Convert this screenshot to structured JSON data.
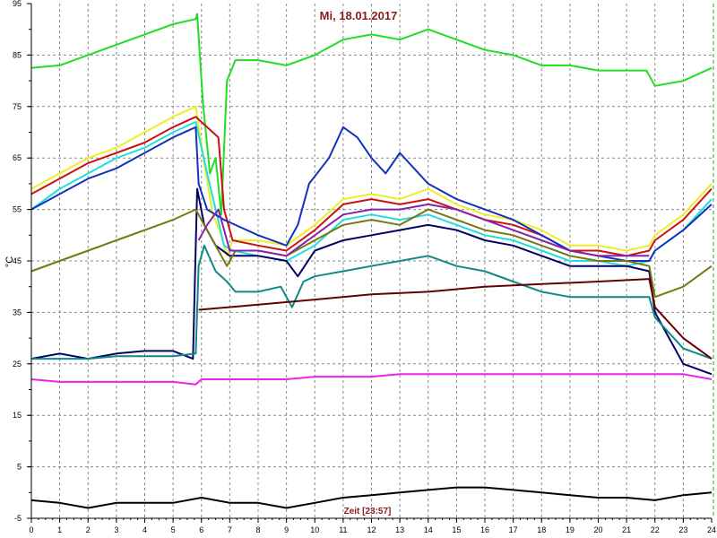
{
  "chart_data": {
    "type": "line",
    "title": "Mi, 18.01.2017",
    "xlabel": "Zeit [23:57]",
    "ylabel": "°C",
    "xlim": [
      0,
      24
    ],
    "ylim": [
      -5,
      95
    ],
    "x_ticks": [
      0,
      1,
      2,
      3,
      4,
      5,
      6,
      7,
      8,
      9,
      10,
      11,
      12,
      13,
      14,
      15,
      16,
      17,
      18,
      19,
      20,
      21,
      22,
      23,
      24
    ],
    "y_ticks": [
      -5,
      5,
      15,
      25,
      35,
      45,
      55,
      65,
      75,
      85,
      95
    ],
    "grid": true,
    "legend": "none",
    "series": [
      {
        "color": "#22dd22",
        "points": [
          [
            0,
            82.5
          ],
          [
            1,
            83
          ],
          [
            2,
            85
          ],
          [
            3,
            87
          ],
          [
            4,
            89
          ],
          [
            5,
            91
          ],
          [
            5.8,
            92
          ],
          [
            5.85,
            93
          ],
          [
            6.05,
            76
          ],
          [
            6.3,
            62
          ],
          [
            6.5,
            65
          ],
          [
            6.7,
            54
          ],
          [
            6.9,
            80
          ],
          [
            7.2,
            84
          ],
          [
            8,
            84
          ],
          [
            9,
            83
          ],
          [
            10,
            85
          ],
          [
            11,
            88
          ],
          [
            12,
            89
          ],
          [
            13,
            88
          ],
          [
            14,
            90
          ],
          [
            15,
            88
          ],
          [
            16,
            86
          ],
          [
            17,
            85
          ],
          [
            18,
            83
          ],
          [
            19,
            83
          ],
          [
            20,
            82
          ],
          [
            21,
            82
          ],
          [
            21.7,
            82
          ],
          [
            22,
            79
          ],
          [
            23,
            80
          ],
          [
            24,
            82.5
          ]
        ]
      },
      {
        "color": "#eeee22",
        "points": [
          [
            0,
            59
          ],
          [
            1,
            62
          ],
          [
            2,
            65
          ],
          [
            3,
            67
          ],
          [
            4,
            70
          ],
          [
            5,
            73
          ],
          [
            5.8,
            75
          ],
          [
            6.1,
            64
          ],
          [
            6.4,
            54
          ],
          [
            6.7,
            50
          ],
          [
            6.9,
            46
          ],
          [
            7.1,
            49
          ],
          [
            8,
            49
          ],
          [
            9,
            48
          ],
          [
            10,
            52
          ],
          [
            11,
            57
          ],
          [
            12,
            58
          ],
          [
            13,
            57
          ],
          [
            14,
            59
          ],
          [
            15,
            56
          ],
          [
            16,
            54
          ],
          [
            17,
            53
          ],
          [
            18,
            51
          ],
          [
            19,
            48
          ],
          [
            20,
            48
          ],
          [
            21,
            47
          ],
          [
            21.8,
            48
          ],
          [
            22,
            50
          ],
          [
            23,
            54
          ],
          [
            24,
            60
          ]
        ]
      },
      {
        "color": "#cc1111",
        "points": [
          [
            0,
            58
          ],
          [
            1,
            61
          ],
          [
            2,
            64
          ],
          [
            3,
            66
          ],
          [
            4,
            68
          ],
          [
            5,
            71
          ],
          [
            5.8,
            73
          ],
          [
            6.2,
            71
          ],
          [
            6.6,
            69
          ],
          [
            6.8,
            55
          ],
          [
            7.1,
            49
          ],
          [
            8,
            48
          ],
          [
            9,
            47
          ],
          [
            10,
            51
          ],
          [
            11,
            56
          ],
          [
            12,
            57
          ],
          [
            13,
            56
          ],
          [
            14,
            57
          ],
          [
            15,
            55
          ],
          [
            16,
            53
          ],
          [
            17,
            52
          ],
          [
            18,
            50
          ],
          [
            19,
            47
          ],
          [
            20,
            47
          ],
          [
            21,
            46
          ],
          [
            21.8,
            47
          ],
          [
            22,
            49
          ],
          [
            23,
            53
          ],
          [
            24,
            59
          ]
        ]
      },
      {
        "color": "#22dddd",
        "points": [
          [
            0,
            55
          ],
          [
            1,
            59
          ],
          [
            2,
            62
          ],
          [
            3,
            65
          ],
          [
            4,
            67
          ],
          [
            5,
            70
          ],
          [
            5.8,
            72
          ],
          [
            6.2,
            62
          ],
          [
            6.5,
            55
          ],
          [
            6.8,
            48
          ],
          [
            7.1,
            47
          ],
          [
            8,
            46
          ],
          [
            9,
            45
          ],
          [
            10,
            48
          ],
          [
            11,
            53
          ],
          [
            12,
            54
          ],
          [
            13,
            53
          ],
          [
            14,
            54
          ],
          [
            15,
            52
          ],
          [
            16,
            50
          ],
          [
            17,
            49
          ],
          [
            18,
            47
          ],
          [
            19,
            45
          ],
          [
            20,
            45
          ],
          [
            21,
            44
          ],
          [
            21.8,
            45
          ],
          [
            22,
            47
          ],
          [
            23,
            51
          ],
          [
            24,
            57
          ]
        ]
      },
      {
        "color": "#1133bb",
        "points": [
          [
            0,
            55
          ],
          [
            1,
            58
          ],
          [
            2,
            61
          ],
          [
            3,
            63
          ],
          [
            4,
            66
          ],
          [
            5,
            69
          ],
          [
            5.8,
            71
          ],
          [
            5.9,
            60
          ],
          [
            6.2,
            55
          ],
          [
            6.8,
            53
          ],
          [
            8,
            50
          ],
          [
            9,
            48
          ],
          [
            9.4,
            52
          ],
          [
            9.8,
            60
          ],
          [
            10.5,
            65
          ],
          [
            11,
            71
          ],
          [
            11.5,
            69
          ],
          [
            12,
            65
          ],
          [
            12.5,
            62
          ],
          [
            13,
            66
          ],
          [
            13.5,
            63
          ],
          [
            14,
            60
          ],
          [
            15,
            57
          ],
          [
            16,
            55
          ],
          [
            17,
            53
          ],
          [
            18,
            50
          ],
          [
            19,
            47
          ],
          [
            20,
            46
          ],
          [
            21,
            45
          ],
          [
            21.8,
            45
          ],
          [
            22,
            47
          ],
          [
            23,
            51
          ],
          [
            24,
            56
          ]
        ]
      },
      {
        "color": "#000066",
        "points": [
          [
            0,
            26
          ],
          [
            1,
            27
          ],
          [
            2,
            26
          ],
          [
            3,
            27
          ],
          [
            4,
            27.5
          ],
          [
            5,
            27.5
          ],
          [
            5.7,
            26
          ],
          [
            5.85,
            59
          ],
          [
            6.1,
            52
          ],
          [
            6.5,
            48
          ],
          [
            7,
            46
          ],
          [
            8,
            46
          ],
          [
            9,
            45
          ],
          [
            9.4,
            42
          ],
          [
            10,
            47
          ],
          [
            11,
            49
          ],
          [
            12,
            50
          ],
          [
            13,
            51
          ],
          [
            14,
            52
          ],
          [
            15,
            51
          ],
          [
            16,
            49
          ],
          [
            17,
            48
          ],
          [
            18,
            46
          ],
          [
            19,
            44
          ],
          [
            20,
            44
          ],
          [
            21,
            44
          ],
          [
            21.8,
            43
          ],
          [
            22,
            35
          ],
          [
            23,
            25
          ],
          [
            24,
            23
          ]
        ]
      },
      {
        "color": "#777711",
        "points": [
          [
            0,
            43
          ],
          [
            1,
            45
          ],
          [
            2,
            47
          ],
          [
            3,
            49
          ],
          [
            4,
            51
          ],
          [
            5,
            53
          ],
          [
            5.8,
            55
          ],
          [
            6.2,
            51
          ],
          [
            6.6,
            47
          ],
          [
            6.9,
            44
          ],
          [
            7.2,
            47
          ],
          [
            8,
            47
          ],
          [
            9,
            46
          ],
          [
            10,
            49
          ],
          [
            11,
            52
          ],
          [
            12,
            53
          ],
          [
            13,
            52
          ],
          [
            14,
            55
          ],
          [
            15,
            53
          ],
          [
            16,
            51
          ],
          [
            17,
            50
          ],
          [
            18,
            48
          ],
          [
            19,
            46
          ],
          [
            20,
            45
          ],
          [
            21,
            45
          ],
          [
            21.8,
            44
          ],
          [
            22,
            38
          ],
          [
            23,
            40
          ],
          [
            24,
            44
          ]
        ]
      },
      {
        "color": "#8822aa",
        "points": [
          [
            5.9,
            49
          ],
          [
            6.2,
            52
          ],
          [
            6.6,
            55
          ],
          [
            7,
            47
          ],
          [
            8,
            47
          ],
          [
            9,
            46
          ],
          [
            10,
            50
          ],
          [
            11,
            54
          ],
          [
            12,
            55
          ],
          [
            13,
            55
          ],
          [
            14,
            56
          ],
          [
            15,
            55
          ],
          [
            16,
            53
          ],
          [
            17,
            51
          ],
          [
            18,
            49
          ],
          [
            19,
            47
          ],
          [
            20,
            46
          ],
          [
            21,
            46
          ],
          [
            21.8,
            46
          ]
        ]
      },
      {
        "color": "#118888",
        "points": [
          [
            0,
            26
          ],
          [
            1,
            26
          ],
          [
            2,
            26
          ],
          [
            3,
            26.5
          ],
          [
            4,
            26.5
          ],
          [
            5,
            26.5
          ],
          [
            5.8,
            27
          ],
          [
            5.9,
            44
          ],
          [
            6.1,
            48
          ],
          [
            6.5,
            43
          ],
          [
            6.9,
            41
          ],
          [
            7.2,
            39
          ],
          [
            8,
            39
          ],
          [
            8.8,
            40
          ],
          [
            9.2,
            36
          ],
          [
            9.6,
            41
          ],
          [
            10,
            42
          ],
          [
            11,
            43
          ],
          [
            12,
            44
          ],
          [
            13,
            45
          ],
          [
            14,
            46
          ],
          [
            15,
            44
          ],
          [
            16,
            43
          ],
          [
            17,
            41
          ],
          [
            18,
            39
          ],
          [
            19,
            38
          ],
          [
            20,
            38
          ],
          [
            21,
            38
          ],
          [
            21.8,
            38
          ],
          [
            22,
            34
          ],
          [
            23,
            28
          ],
          [
            24,
            26
          ]
        ]
      },
      {
        "color": "#660000",
        "points": [
          [
            5.9,
            35.5
          ],
          [
            8,
            36.5
          ],
          [
            10,
            37.5
          ],
          [
            12,
            38.5
          ],
          [
            14,
            39
          ],
          [
            16,
            40
          ],
          [
            18,
            40.5
          ],
          [
            20,
            41
          ],
          [
            21.8,
            41.5
          ],
          [
            22,
            36
          ],
          [
            23,
            30
          ],
          [
            24,
            26
          ]
        ]
      },
      {
        "color": "#ee22ee",
        "points": [
          [
            0,
            22
          ],
          [
            1,
            21.5
          ],
          [
            2,
            21.5
          ],
          [
            3,
            21.5
          ],
          [
            4,
            21.5
          ],
          [
            5,
            21.5
          ],
          [
            5.8,
            21
          ],
          [
            6,
            22
          ],
          [
            7,
            22
          ],
          [
            8,
            22
          ],
          [
            9,
            22
          ],
          [
            10,
            22.5
          ],
          [
            11,
            22.5
          ],
          [
            12,
            22.5
          ],
          [
            13,
            23
          ],
          [
            14,
            23
          ],
          [
            15,
            23
          ],
          [
            16,
            23
          ],
          [
            17,
            23
          ],
          [
            18,
            23
          ],
          [
            19,
            23
          ],
          [
            20,
            23
          ],
          [
            21,
            23
          ],
          [
            22,
            23
          ],
          [
            23,
            23
          ],
          [
            24,
            22
          ]
        ]
      },
      {
        "color": "#000000",
        "points": [
          [
            0,
            -1.5
          ],
          [
            1,
            -2
          ],
          [
            2,
            -3
          ],
          [
            3,
            -2
          ],
          [
            4,
            -2
          ],
          [
            5,
            -2
          ],
          [
            6,
            -1
          ],
          [
            7,
            -2
          ],
          [
            8,
            -2
          ],
          [
            9,
            -3
          ],
          [
            10,
            -2
          ],
          [
            11,
            -1
          ],
          [
            12,
            -0.5
          ],
          [
            13,
            0
          ],
          [
            14,
            0.5
          ],
          [
            15,
            1
          ],
          [
            16,
            1
          ],
          [
            17,
            0.5
          ],
          [
            18,
            0
          ],
          [
            19,
            -0.5
          ],
          [
            20,
            -1
          ],
          [
            21,
            -1
          ],
          [
            22,
            -1.5
          ],
          [
            23,
            -0.5
          ],
          [
            24,
            0
          ]
        ]
      }
    ]
  }
}
